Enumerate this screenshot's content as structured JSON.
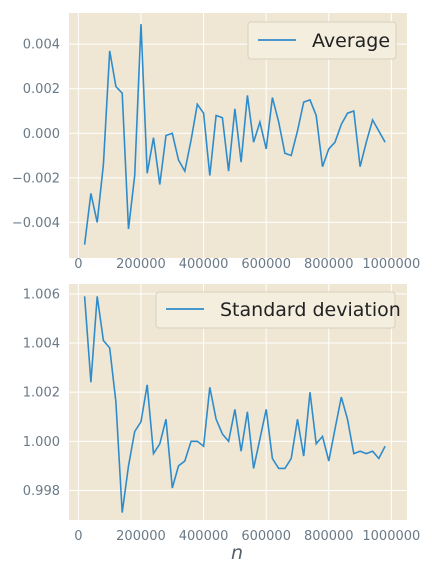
{
  "chart_data": [
    {
      "type": "line",
      "title": "",
      "xlabel": "",
      "ylabel": "",
      "xlim": [
        -30000,
        1050000
      ],
      "ylim": [
        -0.0056,
        0.0054
      ],
      "grid": true,
      "legend_position": "top-right",
      "x_ticks": [
        0,
        200000,
        400000,
        600000,
        800000,
        1000000
      ],
      "x_tick_labels": [
        "0",
        "200000",
        "400000",
        "600000",
        "800000",
        "1000000"
      ],
      "y_ticks": [
        -0.004,
        -0.002,
        0.0,
        0.002,
        0.004
      ],
      "y_tick_labels": [
        "−0.004",
        "−0.002",
        "0.000",
        "0.002",
        "0.004"
      ],
      "series": [
        {
          "name": "Average",
          "color": "#2f8ccc",
          "x": [
            20000,
            40000,
            60000,
            80000,
            100000,
            120000,
            140000,
            160000,
            180000,
            200000,
            220000,
            240000,
            260000,
            280000,
            300000,
            320000,
            340000,
            360000,
            380000,
            400000,
            420000,
            440000,
            460000,
            480000,
            500000,
            520000,
            540000,
            560000,
            580000,
            600000,
            620000,
            640000,
            660000,
            680000,
            700000,
            720000,
            740000,
            760000,
            780000,
            800000,
            820000,
            840000,
            860000,
            880000,
            900000,
            920000,
            940000,
            960000,
            980000,
            1000000
          ],
          "y": [
            -0.005,
            -0.0027,
            -0.004,
            -0.0014,
            0.0037,
            0.0021,
            0.0018,
            -0.0043,
            -0.0019,
            0.0049,
            -0.0018,
            -0.0002,
            -0.0023,
            -0.0001,
            0.0,
            -0.0012,
            -0.0017,
            -0.0003,
            0.0013,
            0.0009,
            -0.0019,
            0.0008,
            0.0007,
            -0.0017,
            0.0011,
            -0.0013,
            0.0017,
            -0.0004,
            0.0005,
            -0.0007,
            0.0016,
            0.0005,
            -0.0009,
            -0.001,
            0.0001,
            0.0014,
            0.0015,
            0.0008,
            -0.0015,
            -0.0007,
            -0.0004,
            0.0004,
            0.0009,
            0.001,
            -0.0015,
            -0.0004,
            0.0006,
            0.0001,
            -0.0004,
            null
          ]
        }
      ]
    },
    {
      "type": "line",
      "title": "",
      "xlabel": "n",
      "ylabel": "",
      "xlim": [
        -30000,
        1050000
      ],
      "ylim": [
        0.9968,
        1.0064
      ],
      "grid": true,
      "legend_position": "top-right",
      "x_ticks": [
        0,
        200000,
        400000,
        600000,
        800000,
        1000000
      ],
      "x_tick_labels": [
        "0",
        "200000",
        "400000",
        "600000",
        "800000",
        "1000000"
      ],
      "y_ticks": [
        0.998,
        1.0,
        1.002,
        1.004,
        1.006
      ],
      "y_tick_labels": [
        "0.998",
        "1.000",
        "1.002",
        "1.004",
        "1.006"
      ],
      "series": [
        {
          "name": "Standard deviation",
          "color": "#2f8ccc",
          "x": [
            20000,
            40000,
            60000,
            80000,
            100000,
            120000,
            140000,
            160000,
            180000,
            200000,
            220000,
            240000,
            260000,
            280000,
            300000,
            320000,
            340000,
            360000,
            380000,
            400000,
            420000,
            440000,
            460000,
            480000,
            500000,
            520000,
            540000,
            560000,
            580000,
            600000,
            620000,
            640000,
            660000,
            680000,
            700000,
            720000,
            740000,
            760000,
            780000,
            800000,
            820000,
            840000,
            860000,
            880000,
            900000,
            920000,
            940000,
            960000,
            980000,
            1000000
          ],
          "y": [
            1.0059,
            1.0024,
            1.0059,
            1.0041,
            1.0038,
            1.0016,
            0.9971,
            0.999,
            1.0004,
            1.0008,
            1.0023,
            0.9995,
            0.9999,
            1.0009,
            0.9981,
            0.999,
            0.9992,
            1.0,
            1.0,
            0.9998,
            1.0022,
            1.0009,
            1.0003,
            1.0,
            1.0013,
            0.9996,
            1.0012,
            0.9989,
            1.0001,
            1.0013,
            0.9993,
            0.9989,
            0.9989,
            0.9993,
            1.0009,
            0.9994,
            1.002,
            0.9999,
            1.0002,
            0.9992,
            1.0005,
            1.0018,
            1.0009,
            0.9995,
            0.9996,
            0.9995,
            0.9996,
            0.9993,
            0.9998,
            null
          ]
        }
      ]
    }
  ]
}
